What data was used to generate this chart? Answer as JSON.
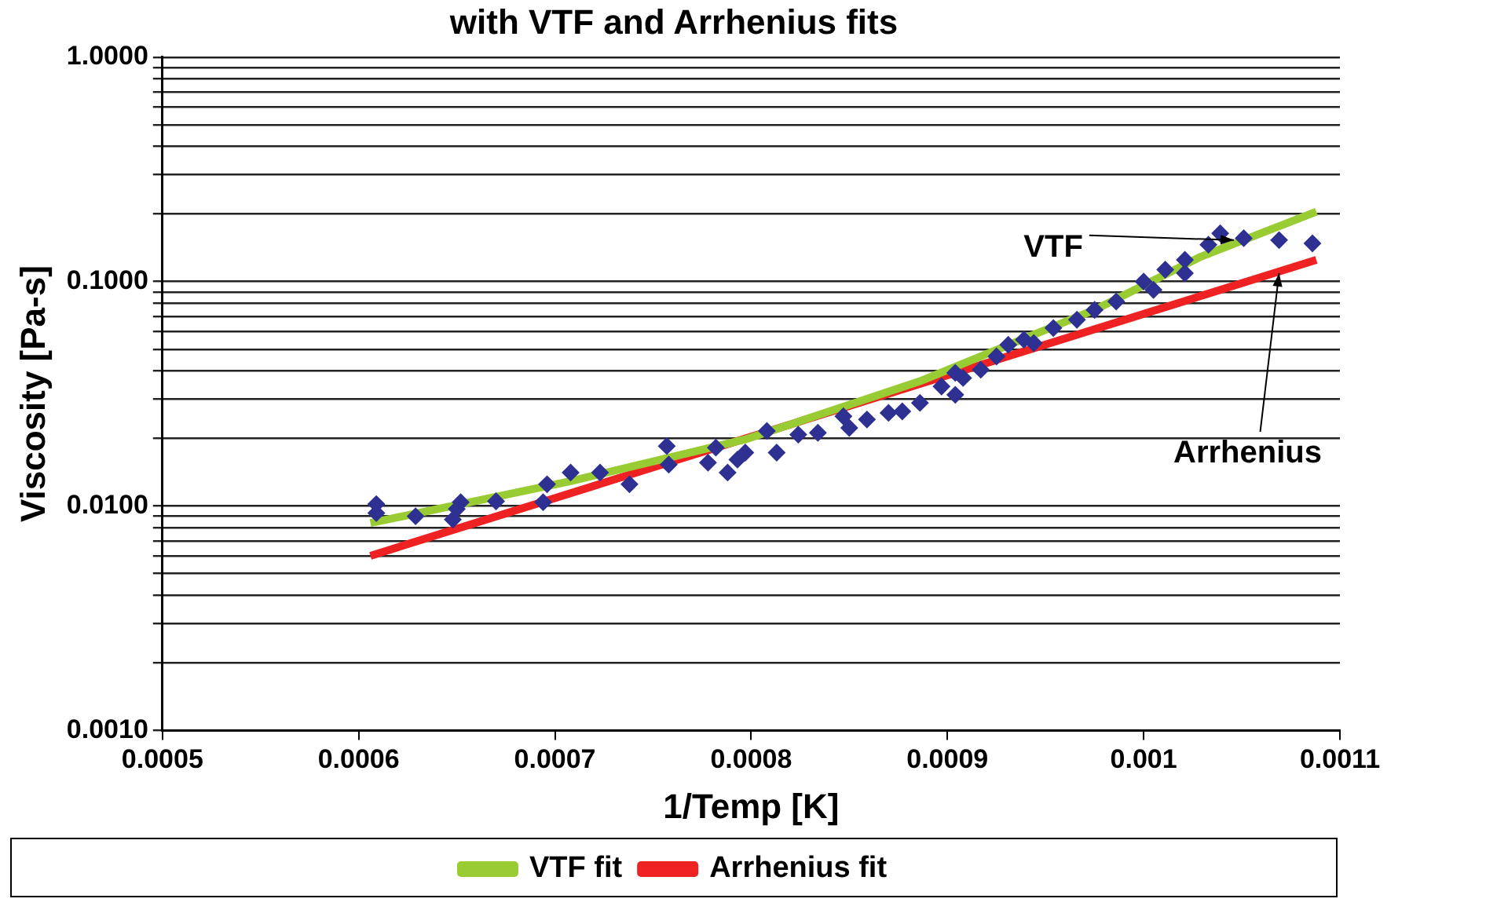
{
  "chart_data": {
    "type": "scatter",
    "title": "with VTF and Arrhenius fits",
    "xlabel": "1/Temp [K]",
    "ylabel": "Viscosity [Pa-s]",
    "log": "y",
    "grid": "y",
    "legend": "bottom",
    "xlim": [
      0.0005,
      0.0011
    ],
    "xticks": [
      0.0005,
      0.0006,
      0.0007,
      0.0008,
      0.0009,
      0.001,
      0.0011
    ],
    "ylim": [
      0.001,
      1
    ],
    "yticks": [
      {
        "value": 0.001,
        "label": "0.0010"
      },
      {
        "value": 0.002,
        "label": null
      },
      {
        "value": 0.003,
        "label": null
      },
      {
        "value": 0.004,
        "label": null
      },
      {
        "value": 0.005,
        "label": null
      },
      {
        "value": 0.006,
        "label": null
      },
      {
        "value": 0.007,
        "label": null
      },
      {
        "value": 0.008,
        "label": null
      },
      {
        "value": 0.009,
        "label": null
      },
      {
        "value": 0.01,
        "label": "0.0100"
      },
      {
        "value": 0.02,
        "label": null
      },
      {
        "value": 0.03,
        "label": null
      },
      {
        "value": 0.04,
        "label": null
      },
      {
        "value": 0.05,
        "label": null
      },
      {
        "value": 0.06,
        "label": null
      },
      {
        "value": 0.07,
        "label": null
      },
      {
        "value": 0.08,
        "label": null
      },
      {
        "value": 0.09,
        "label": null
      },
      {
        "value": 0.1,
        "label": "0.1000"
      },
      {
        "value": 0.2,
        "label": null
      },
      {
        "value": 0.3,
        "label": null
      },
      {
        "value": 0.4,
        "label": null
      },
      {
        "value": 0.5,
        "label": null
      },
      {
        "value": 0.6,
        "label": null
      },
      {
        "value": 0.7,
        "label": null
      },
      {
        "value": 0.8,
        "label": null
      },
      {
        "value": 0.9,
        "label": null
      },
      {
        "value": 1,
        "label": "1.0000"
      }
    ],
    "series": [
      {
        "type": "scatter",
        "marker": "diamond",
        "color": "#2e3192",
        "x": [
          0.000609,
          0.000609,
          0.000629,
          0.000648,
          0.000652,
          0.00065,
          0.00067,
          0.000694,
          0.000696,
          0.000708,
          0.000723,
          0.000738,
          0.000757,
          0.000758,
          0.000778,
          0.000782,
          0.000788,
          0.000793,
          0.000797,
          0.000808,
          0.000813,
          0.000824,
          0.000834,
          0.000847,
          0.00085,
          0.000859,
          0.00087,
          0.000877,
          0.000886,
          0.000897,
          0.000904,
          0.000908,
          0.000917,
          0.000925,
          0.000931,
          0.000939,
          0.000944,
          0.000954,
          0.000966,
          0.000975,
          0.000986,
          0.001,
          0.001011,
          0.001021,
          0.001033,
          0.001039,
          0.001051,
          0.001069,
          0.001086,
          0.001021,
          0.001005,
          0.000904
        ],
        "values": [
          0.0102,
          0.0093,
          0.009,
          0.0087,
          0.0104,
          0.0097,
          0.0105,
          0.0104,
          0.0125,
          0.0141,
          0.0141,
          0.0125,
          0.0185,
          0.0153,
          0.0156,
          0.0182,
          0.0141,
          0.0161,
          0.0173,
          0.0216,
          0.0173,
          0.0208,
          0.0212,
          0.0251,
          0.0223,
          0.0243,
          0.026,
          0.0264,
          0.0288,
          0.0341,
          0.0313,
          0.0372,
          0.0405,
          0.0464,
          0.0523,
          0.0551,
          0.0532,
          0.0621,
          0.0676,
          0.0748,
          0.0815,
          0.1,
          0.113,
          0.125,
          0.146,
          0.164,
          0.156,
          0.153,
          0.148,
          0.109,
          0.0918,
          0.0392
        ]
      },
      {
        "type": "line",
        "name": "VTF fit",
        "marker": "none",
        "color": "#99cc33",
        "x": [
          0.000606,
          0.000708,
          0.000797,
          0.000886,
          0.000975,
          0.001029,
          0.001088
        ],
        "values": [
          0.0084,
          0.0129,
          0.0198,
          0.036,
          0.0748,
          0.129,
          0.205
        ]
      },
      {
        "type": "line",
        "name": "Arrhenius fit",
        "marker": "none",
        "color": "#ee2222",
        "x": [
          0.000606,
          0.001088
        ],
        "values": [
          0.006,
          0.125
        ]
      }
    ],
    "annotations": [
      {
        "text": "VTF",
        "x": 0.001046,
        "y": 0.153
      },
      {
        "text": "Arrhenius",
        "x": 0.001069,
        "y": 0.109
      }
    ]
  }
}
